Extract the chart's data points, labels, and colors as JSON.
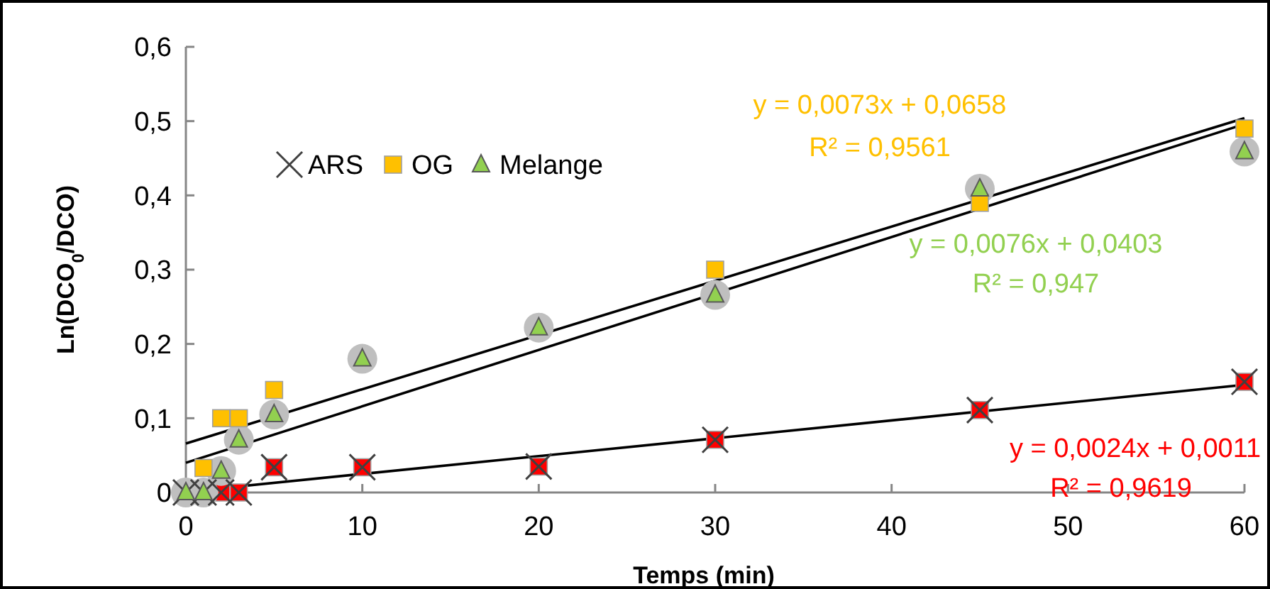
{
  "chart_data": {
    "type": "scatter",
    "xlabel": "Temps (min)",
    "ylabel": "Ln(DCO$_{0}$/DCO)",
    "xlim": [
      0,
      60
    ],
    "xticks": [
      0,
      10,
      20,
      30,
      40,
      50,
      60
    ],
    "ylim": [
      0,
      0.6
    ],
    "yticks": [
      {
        "value": 0,
        "label": "0"
      },
      {
        "value": 0.1,
        "label": "0,1"
      },
      {
        "value": 0.2,
        "label": "0,2"
      },
      {
        "value": 0.3,
        "label": "0,3"
      },
      {
        "value": 0.4,
        "label": "0,4"
      },
      {
        "value": 0.5,
        "label": "0,5"
      },
      {
        "value": 0.6,
        "label": "0,6"
      }
    ],
    "grid": false,
    "legend": "top left",
    "series": [
      {
        "name": "ARS",
        "color": "#404040",
        "marker": "cross",
        "x": [
          0,
          1,
          2,
          3,
          5,
          10,
          20,
          30,
          45,
          60
        ],
        "values": [
          0,
          0,
          0,
          0,
          0.034,
          0.034,
          0.035,
          0.071,
          0.111,
          0.149
        ]
      },
      {
        "name": "OG",
        "color": "#ffc000",
        "marker": "square",
        "x": [
          1,
          2,
          3,
          5,
          30,
          45,
          60
        ],
        "values": [
          0.033,
          0.1,
          0.1,
          0.138,
          0.3,
          0.39,
          0.49
        ]
      },
      {
        "name": "Melange",
        "color": "#92d050",
        "marker": "triangle",
        "x": [
          0,
          1,
          2,
          3,
          5,
          10,
          20,
          30,
          45,
          60
        ],
        "values": [
          0,
          0,
          0.029,
          0.071,
          0.105,
          0.18,
          0.222,
          0.266,
          0.409,
          0.459
        ]
      },
      {
        "color": "#ff0000",
        "marker": "square",
        "x": [
          2,
          3,
          5,
          10,
          20,
          30,
          45,
          60
        ],
        "values": [
          0,
          0,
          0.034,
          0.034,
          0.035,
          0.071,
          0.111,
          0.149
        ]
      },
      {
        "color": "#bfbfbf",
        "marker": "circle",
        "x": [
          0,
          1,
          2,
          3,
          5,
          10,
          20,
          30,
          45,
          60
        ],
        "values": [
          0,
          0,
          0.029,
          0.071,
          0.105,
          0.18,
          0.222,
          0.266,
          0.409,
          0.459
        ]
      },
      {
        "type": "line",
        "color": "#000000",
        "x": [
          0,
          60
        ],
        "values": [
          0.066,
          0.504
        ]
      },
      {
        "type": "line",
        "color": "#000000",
        "x": [
          0,
          60
        ],
        "values": [
          0.04,
          0.496
        ]
      },
      {
        "type": "line",
        "color": "#000000",
        "x": [
          0,
          60
        ],
        "values": [
          0.001,
          0.145
        ]
      }
    ],
    "annotations": [
      "y = 0,0073x + 0,0658",
      "R² = 0,9561",
      "y = 0,0076x + 0,0403",
      "R² = 0,947",
      "y = 0,0024x + 0,0011",
      "R² = 0,9619"
    ]
  }
}
